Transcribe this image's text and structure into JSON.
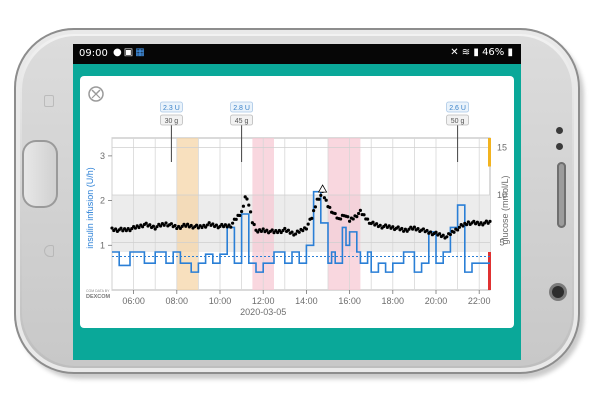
{
  "statusbar": {
    "time": "09:00",
    "left_icons": [
      "location-icon",
      "image-icon",
      "calendar-icon"
    ],
    "right_icons": [
      "mute-icon",
      "wifi-icon",
      "signal-icon"
    ],
    "battery": "46%"
  },
  "app": {
    "rotate_icon": "rotate-icon",
    "dexcom_label_top": "CGM DATA BY",
    "dexcom_label_brand": "DEXCOM",
    "date_label": "2020-03-05"
  },
  "colors": {
    "teal": "#0aa899",
    "insulin_blue": "#2a7fd6",
    "glucose_black": "#000000",
    "meal_orange": "#f5d6a8",
    "meal_pink": "#f7c9d4"
  },
  "chart_data": {
    "type": "line",
    "xlabel": "",
    "ylabel_left": "insulin infusion (U/h)",
    "ylabel_right": "glucose (mmol/L)",
    "x_ticks": [
      "06:00",
      "08:00",
      "10:00",
      "12:00",
      "14:00",
      "16:00",
      "18:00",
      "20:00",
      "22:00"
    ],
    "y_left_ticks": [
      "1",
      "2",
      "3"
    ],
    "y_right_ticks": [
      "5",
      "10",
      "15"
    ],
    "xlim": [
      "05:00",
      "22:30"
    ],
    "ylim_left": [
      0,
      3.4
    ],
    "ylim_right": [
      0,
      16
    ],
    "grid": true,
    "annotations": [
      {
        "time": "07:45",
        "insulin": "2.3 U",
        "carbs": "30 g"
      },
      {
        "time": "11:00",
        "insulin": "2.8 U",
        "carbs": "45 g"
      },
      {
        "time": "21:00",
        "insulin": "2.6 U",
        "carbs": "50 g"
      }
    ],
    "highlight_bands": [
      {
        "start": "08:00",
        "end": "09:00",
        "color": "orange"
      },
      {
        "start": "11:30",
        "end": "12:30",
        "color": "pink"
      },
      {
        "start": "15:00",
        "end": "16:30",
        "color": "pink"
      }
    ],
    "target_range": [
      4,
      10
    ],
    "glucose_series": {
      "name": "glucose",
      "x": [
        "05:00",
        "05:30",
        "06:00",
        "06:30",
        "07:00",
        "07:30",
        "08:00",
        "08:30",
        "09:00",
        "09:30",
        "10:00",
        "10:30",
        "11:00",
        "11:10",
        "11:20",
        "11:30",
        "11:45",
        "12:00",
        "12:30",
        "13:00",
        "13:30",
        "14:00",
        "14:15",
        "14:30",
        "14:45",
        "15:00",
        "15:15",
        "15:30",
        "15:45",
        "16:00",
        "16:30",
        "17:00",
        "17:30",
        "18:00",
        "18:30",
        "19:00",
        "19:30",
        "20:00",
        "20:30",
        "21:00",
        "21:30",
        "22:00",
        "22:30"
      ],
      "values": [
        6.4,
        6.3,
        6.5,
        6.9,
        6.6,
        7.0,
        6.6,
        6.8,
        6.6,
        6.9,
        6.7,
        6.8,
        8.2,
        9.8,
        9.0,
        7.2,
        6.1,
        6.3,
        6.1,
        6.3,
        5.9,
        6.6,
        7.6,
        9.5,
        10.2,
        8.9,
        8.1,
        7.4,
        8.0,
        7.3,
        8.2,
        7.0,
        6.7,
        6.6,
        6.3,
        6.5,
        6.2,
        5.9,
        5.6,
        6.5,
        7.1,
        7.0,
        7.1
      ]
    },
    "insulin_series": {
      "name": "insulin infusion",
      "x": [
        "05:00",
        "05:20",
        "05:50",
        "06:30",
        "07:00",
        "07:30",
        "07:50",
        "08:10",
        "08:40",
        "09:00",
        "09:20",
        "09:40",
        "10:00",
        "10:20",
        "10:40",
        "11:00",
        "11:20",
        "11:40",
        "12:00",
        "12:30",
        "13:00",
        "13:20",
        "13:40",
        "14:00",
        "14:20",
        "14:40",
        "15:00",
        "15:10",
        "15:20",
        "15:40",
        "15:50",
        "16:00",
        "16:20",
        "16:30",
        "16:50",
        "17:00",
        "17:20",
        "17:40",
        "18:00",
        "18:30",
        "19:00",
        "19:20",
        "19:40",
        "20:00",
        "20:20",
        "20:40",
        "21:00",
        "21:20",
        "21:40",
        "22:00",
        "22:30"
      ],
      "values": [
        0.85,
        0.55,
        0.85,
        0.6,
        0.85,
        0.6,
        0.85,
        0.6,
        0.4,
        0.6,
        0.8,
        0.6,
        0.8,
        1.4,
        0.6,
        1.7,
        0.6,
        0.4,
        0.6,
        0.85,
        0.6,
        0.85,
        0.6,
        1.0,
        2.2,
        1.5,
        0.6,
        0.85,
        0.6,
        1.4,
        1.0,
        1.3,
        0.85,
        0.6,
        0.85,
        0.4,
        0.6,
        0.4,
        0.6,
        0.85,
        0.4,
        0.6,
        1.3,
        0.6,
        0.85,
        1.4,
        1.9,
        0.4,
        0.6,
        0.6,
        0.6
      ],
      "basal_dotted_value": 0.75
    }
  }
}
